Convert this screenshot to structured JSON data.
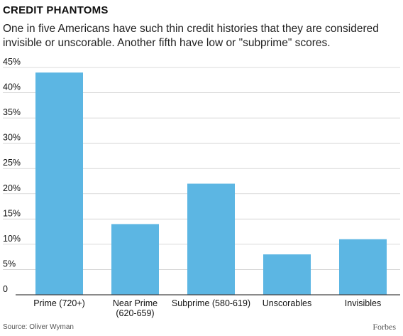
{
  "header": {
    "title": "CREDIT PHANTOMS",
    "subtitle": "One in five Americans have such thin credit histories that they are considered invisible or unscorable. Another fifth have low or \"subprime\" scores."
  },
  "footer": {
    "source": "Source: Oliver Wyman",
    "brand": "Forbes"
  },
  "colors": {
    "bar": "#5cb6e3",
    "axis": "#444444",
    "grid": "#cfcfcf"
  },
  "chart_data": {
    "type": "bar",
    "categories": [
      [
        "Prime (720+)"
      ],
      [
        "Near Prime",
        "(620-659)"
      ],
      [
        "Subprime (580-619)"
      ],
      [
        "Unscorables"
      ],
      [
        "Invisibles"
      ]
    ],
    "values": [
      44,
      14,
      22,
      8,
      11
    ],
    "yticks": [
      "0",
      "5%",
      "10%",
      "15%",
      "20%",
      "25%",
      "30%",
      "35%",
      "40%",
      "45%"
    ],
    "ylim": [
      0,
      45
    ],
    "grid": true
  }
}
